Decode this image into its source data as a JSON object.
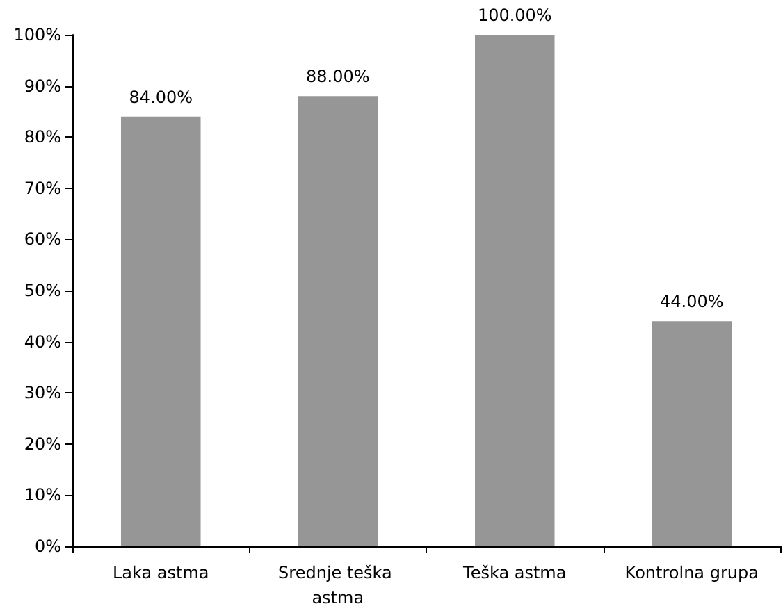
{
  "chart_data": {
    "type": "bar",
    "categories": [
      "Laka astma",
      "Srednje teška astma",
      "Teška astma",
      "Kontrolna grupa"
    ],
    "values": [
      84,
      88,
      100,
      44
    ],
    "value_labels": [
      "84.00%",
      "88.00%",
      "100.00%",
      "44.00%"
    ],
    "color": "#969696",
    "ylim": [
      0,
      100
    ],
    "yticks": [
      {
        "value": 0,
        "label": "0%"
      },
      {
        "value": 10,
        "label": "10%"
      },
      {
        "value": 20,
        "label": "20%"
      },
      {
        "value": 30,
        "label": "30%"
      },
      {
        "value": 40,
        "label": "40%"
      },
      {
        "value": 50,
        "label": "50%"
      },
      {
        "value": 60,
        "label": "60%"
      },
      {
        "value": 70,
        "label": "70%"
      },
      {
        "value": 80,
        "label": "80%"
      },
      {
        "value": 90,
        "label": "90%"
      },
      {
        "value": 100,
        "label": "100%"
      }
    ],
    "grid": false
  }
}
